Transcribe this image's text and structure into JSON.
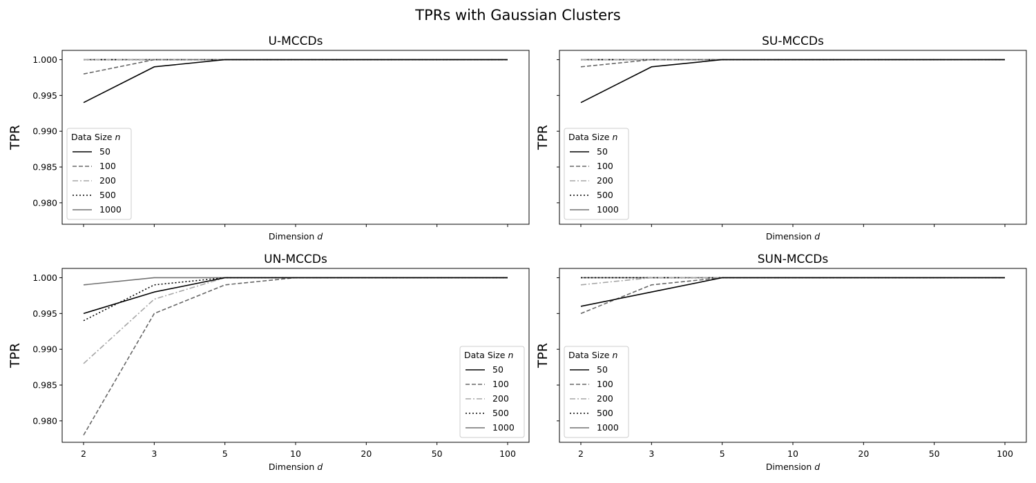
{
  "figure_title": "TPRs with Gaussian Clusters",
  "shared": {
    "x_categories": [
      "2",
      "3",
      "5",
      "10",
      "20",
      "50",
      "100"
    ],
    "xlabel_text": "Dimension ",
    "xlabel_var": "d",
    "ylabel": "TPR",
    "ylim": [
      0.977,
      1.0013
    ],
    "yticks": [
      0.98,
      0.985,
      0.99,
      0.995,
      1.0
    ],
    "ytick_labels": [
      "0.980",
      "0.985",
      "0.990",
      "0.995",
      "1.000"
    ],
    "legend_title_text": "Data Size ",
    "legend_title_var": "n",
    "series_styles": {
      "50": {
        "color": "#000000",
        "dash": ""
      },
      "100": {
        "color": "#666666",
        "dash": "6,3"
      },
      "200": {
        "color": "#a6a6a6",
        "dash": "8,3,2,3"
      },
      "500": {
        "color": "#000000",
        "dash": "2,3"
      },
      "1000": {
        "color": "#707070",
        "dash": ""
      }
    }
  },
  "chart_data": [
    {
      "type": "line",
      "title": "U-MCCDs",
      "xlabel": "Dimension d",
      "ylabel": "TPR",
      "legend": "center-left",
      "show_x_ticklabels": false,
      "show_y_ticklabels": true,
      "series": [
        {
          "name": "50",
          "values": [
            0.994,
            0.999,
            1.0,
            1.0,
            1.0,
            1.0,
            1.0
          ]
        },
        {
          "name": "100",
          "values": [
            0.998,
            1.0,
            1.0,
            1.0,
            1.0,
            1.0,
            1.0
          ]
        },
        {
          "name": "200",
          "values": [
            1.0,
            1.0,
            1.0,
            1.0,
            1.0,
            1.0,
            1.0
          ]
        },
        {
          "name": "500",
          "values": [
            1.0,
            1.0,
            1.0,
            1.0,
            1.0,
            1.0,
            1.0
          ]
        },
        {
          "name": "1000",
          "values": [
            1.0,
            1.0,
            1.0,
            1.0,
            1.0,
            1.0,
            1.0
          ]
        }
      ]
    },
    {
      "type": "line",
      "title": "SU-MCCDs",
      "xlabel": "Dimension d",
      "ylabel": "TPR",
      "legend": "center-left",
      "show_x_ticklabels": false,
      "show_y_ticklabels": false,
      "series": [
        {
          "name": "50",
          "values": [
            0.994,
            0.999,
            1.0,
            1.0,
            1.0,
            1.0,
            1.0
          ]
        },
        {
          "name": "100",
          "values": [
            0.999,
            1.0,
            1.0,
            1.0,
            1.0,
            1.0,
            1.0
          ]
        },
        {
          "name": "200",
          "values": [
            1.0,
            1.0,
            1.0,
            1.0,
            1.0,
            1.0,
            1.0
          ]
        },
        {
          "name": "500",
          "values": [
            1.0,
            1.0,
            1.0,
            1.0,
            1.0,
            1.0,
            1.0
          ]
        },
        {
          "name": "1000",
          "values": [
            1.0,
            1.0,
            1.0,
            1.0,
            1.0,
            1.0,
            1.0
          ]
        }
      ]
    },
    {
      "type": "line",
      "title": "UN-MCCDs",
      "xlabel": "Dimension d",
      "ylabel": "TPR",
      "legend": "lower-right",
      "show_x_ticklabels": true,
      "show_y_ticklabels": true,
      "series": [
        {
          "name": "50",
          "values": [
            0.995,
            0.998,
            1.0,
            1.0,
            1.0,
            1.0,
            1.0
          ]
        },
        {
          "name": "100",
          "values": [
            0.978,
            0.995,
            0.999,
            1.0,
            1.0,
            1.0,
            1.0
          ]
        },
        {
          "name": "200",
          "values": [
            0.988,
            0.997,
            1.0,
            1.0,
            1.0,
            1.0,
            1.0
          ]
        },
        {
          "name": "500",
          "values": [
            0.994,
            0.999,
            1.0,
            1.0,
            1.0,
            1.0,
            1.0
          ]
        },
        {
          "name": "1000",
          "values": [
            0.999,
            1.0,
            1.0,
            1.0,
            1.0,
            1.0,
            1.0
          ]
        }
      ]
    },
    {
      "type": "line",
      "title": "SUN-MCCDs",
      "xlabel": "Dimension d",
      "ylabel": "TPR",
      "legend": "lower-left",
      "show_x_ticklabels": true,
      "show_y_ticklabels": false,
      "series": [
        {
          "name": "50",
          "values": [
            0.996,
            0.998,
            1.0,
            1.0,
            1.0,
            1.0,
            1.0
          ]
        },
        {
          "name": "100",
          "values": [
            0.995,
            0.999,
            1.0,
            1.0,
            1.0,
            1.0,
            1.0
          ]
        },
        {
          "name": "200",
          "values": [
            0.999,
            1.0,
            1.0,
            1.0,
            1.0,
            1.0,
            1.0
          ]
        },
        {
          "name": "500",
          "values": [
            1.0,
            1.0,
            1.0,
            1.0,
            1.0,
            1.0,
            1.0
          ]
        },
        {
          "name": "1000",
          "values": [
            1.0,
            1.0,
            1.0,
            1.0,
            1.0,
            1.0,
            1.0
          ]
        }
      ]
    }
  ]
}
